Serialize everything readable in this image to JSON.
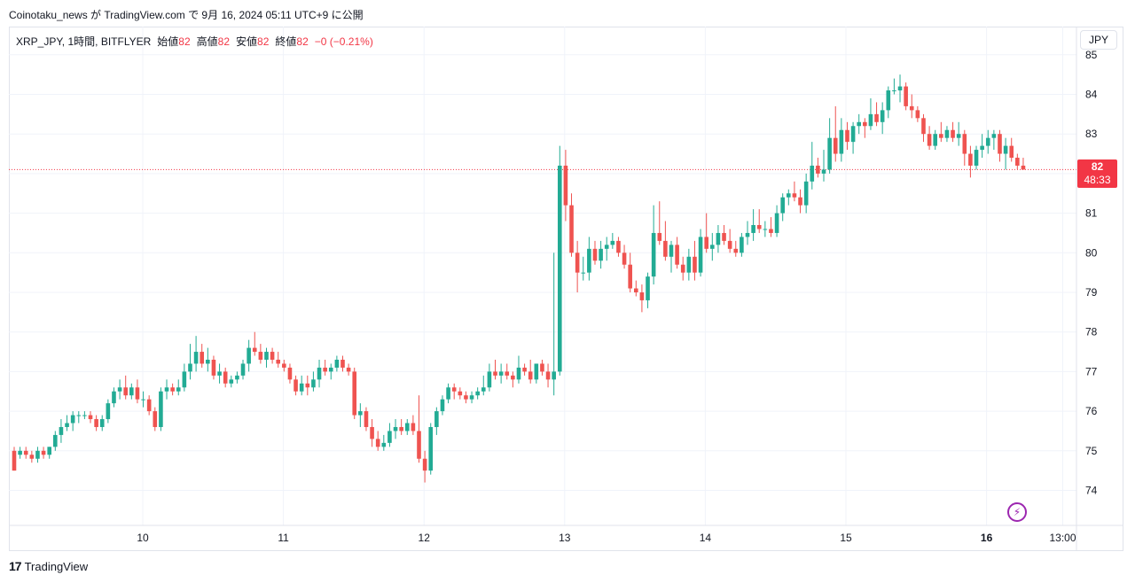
{
  "header": {
    "published_line": "Coinotaku_news が TradingView.com で 9月 16, 2024 05:11 UTC+9 に公開"
  },
  "legend": {
    "symbol": "XRP_JPY, 1時間, BITFLYER",
    "open_label": "始値",
    "open_value": "82",
    "high_label": "高値",
    "high_value": "82",
    "low_label": "安値",
    "low_value": "82",
    "close_label": "終値",
    "close_value": "82",
    "change": "−0 (−0.21%)"
  },
  "currency_button": "JPY",
  "last_price": {
    "price": "82",
    "countdown": "48:33"
  },
  "footer": {
    "logo_mark": "17",
    "logo_text": "TradingView"
  },
  "colors": {
    "up": "#22ab94",
    "down": "#ef5350",
    "grid": "#f0f3fa",
    "price_line": "#f23645",
    "bolt": "#9c27b0"
  },
  "icons": {
    "bolt": "lightning-icon"
  },
  "chart_data": {
    "type": "candlestick",
    "title": "XRP_JPY, 1時間, BITFLYER",
    "y_ticks": [
      "74",
      "75",
      "76",
      "77",
      "78",
      "79",
      "80",
      "81",
      "82",
      "83",
      "84",
      "85"
    ],
    "ylim": [
      73.2,
      85.1
    ],
    "x_ticks": [
      {
        "label": "10",
        "day": 1
      },
      {
        "label": "11",
        "day": 2
      },
      {
        "label": "12",
        "day": 3
      },
      {
        "label": "13",
        "day": 4
      },
      {
        "label": "14",
        "day": 5
      },
      {
        "label": "15",
        "day": 6
      },
      {
        "label": "16",
        "day": 7,
        "bold": true
      },
      {
        "label": "13:00",
        "day": 7.5417
      }
    ],
    "last_price": 82.1,
    "grid": true,
    "candles": [
      [
        75.0,
        75.1,
        74.5,
        74.5
      ],
      [
        74.9,
        75.1,
        74.8,
        75.0
      ],
      [
        75.0,
        75.1,
        74.8,
        74.9
      ],
      [
        74.9,
        75.0,
        74.7,
        74.8
      ],
      [
        74.8,
        75.1,
        74.7,
        75.0
      ],
      [
        75.0,
        75.1,
        74.8,
        74.9
      ],
      [
        74.9,
        75.1,
        74.8,
        75.1
      ],
      [
        75.1,
        75.5,
        75.0,
        75.4
      ],
      [
        75.4,
        75.8,
        75.2,
        75.6
      ],
      [
        75.6,
        75.9,
        75.5,
        75.7
      ],
      [
        75.7,
        76.0,
        75.5,
        75.9
      ],
      [
        75.9,
        76.0,
        75.7,
        75.9
      ],
      [
        75.9,
        76.0,
        75.8,
        75.9
      ],
      [
        75.9,
        76.0,
        75.7,
        75.8
      ],
      [
        75.8,
        75.9,
        75.5,
        75.6
      ],
      [
        75.6,
        75.9,
        75.5,
        75.8
      ],
      [
        75.8,
        76.3,
        75.7,
        76.2
      ],
      [
        76.2,
        76.6,
        76.1,
        76.5
      ],
      [
        76.5,
        76.8,
        76.3,
        76.6
      ],
      [
        76.6,
        76.9,
        76.3,
        76.4
      ],
      [
        76.4,
        76.7,
        76.3,
        76.6
      ],
      [
        76.6,
        76.8,
        76.2,
        76.3
      ],
      [
        76.3,
        76.5,
        76.1,
        76.3
      ],
      [
        76.3,
        76.4,
        75.9,
        76.0
      ],
      [
        76.0,
        76.1,
        75.5,
        75.6
      ],
      [
        75.6,
        76.6,
        75.5,
        76.5
      ],
      [
        76.5,
        76.8,
        76.3,
        76.6
      ],
      [
        76.6,
        76.7,
        76.4,
        76.5
      ],
      [
        76.5,
        76.8,
        76.4,
        76.6
      ],
      [
        76.6,
        77.2,
        76.5,
        77.0
      ],
      [
        77.0,
        77.7,
        76.8,
        77.2
      ],
      [
        77.2,
        77.9,
        77.0,
        77.5
      ],
      [
        77.5,
        77.7,
        77.1,
        77.2
      ],
      [
        77.2,
        77.6,
        77.0,
        77.3
      ],
      [
        77.3,
        77.4,
        76.8,
        76.9
      ],
      [
        76.9,
        77.2,
        76.7,
        77.0
      ],
      [
        77.0,
        77.1,
        76.6,
        76.7
      ],
      [
        76.7,
        76.9,
        76.6,
        76.8
      ],
      [
        76.8,
        77.0,
        76.7,
        76.9
      ],
      [
        76.9,
        77.3,
        76.8,
        77.2
      ],
      [
        77.2,
        77.8,
        77.0,
        77.6
      ],
      [
        77.6,
        78.0,
        77.4,
        77.5
      ],
      [
        77.5,
        77.7,
        77.2,
        77.3
      ],
      [
        77.3,
        77.6,
        77.1,
        77.5
      ],
      [
        77.5,
        77.6,
        77.2,
        77.3
      ],
      [
        77.3,
        77.5,
        77.1,
        77.2
      ],
      [
        77.2,
        77.3,
        77.0,
        77.1
      ],
      [
        77.1,
        77.2,
        76.7,
        76.8
      ],
      [
        76.8,
        76.9,
        76.4,
        76.5
      ],
      [
        76.5,
        76.9,
        76.4,
        76.7
      ],
      [
        76.7,
        76.9,
        76.4,
        76.6
      ],
      [
        76.6,
        77.0,
        76.5,
        76.8
      ],
      [
        76.8,
        77.3,
        76.6,
        77.1
      ],
      [
        77.1,
        77.3,
        76.9,
        77.0
      ],
      [
        77.0,
        77.2,
        76.8,
        77.1
      ],
      [
        77.1,
        77.4,
        77.0,
        77.3
      ],
      [
        77.3,
        77.4,
        77.0,
        77.1
      ],
      [
        77.1,
        77.2,
        76.9,
        77.0
      ],
      [
        77.0,
        77.1,
        75.8,
        75.9
      ],
      [
        75.9,
        76.2,
        75.6,
        76.0
      ],
      [
        76.0,
        76.1,
        75.5,
        75.6
      ],
      [
        75.6,
        75.8,
        75.1,
        75.3
      ],
      [
        75.3,
        75.5,
        75.0,
        75.1
      ],
      [
        75.1,
        75.4,
        75.0,
        75.2
      ],
      [
        75.2,
        75.7,
        75.1,
        75.5
      ],
      [
        75.5,
        75.8,
        75.3,
        75.6
      ],
      [
        75.6,
        75.8,
        75.4,
        75.5
      ],
      [
        75.5,
        75.8,
        75.4,
        75.7
      ],
      [
        75.7,
        75.9,
        75.4,
        75.5
      ],
      [
        75.5,
        76.4,
        74.7,
        74.8
      ],
      [
        74.8,
        75.0,
        74.2,
        74.5
      ],
      [
        74.5,
        75.7,
        74.4,
        75.6
      ],
      [
        75.6,
        76.1,
        75.4,
        76.0
      ],
      [
        76.0,
        76.4,
        75.9,
        76.3
      ],
      [
        76.3,
        76.7,
        76.2,
        76.6
      ],
      [
        76.6,
        76.7,
        76.3,
        76.5
      ],
      [
        76.5,
        76.6,
        76.3,
        76.4
      ],
      [
        76.4,
        76.5,
        76.2,
        76.3
      ],
      [
        76.3,
        76.5,
        76.2,
        76.4
      ],
      [
        76.4,
        76.6,
        76.3,
        76.5
      ],
      [
        76.5,
        76.9,
        76.4,
        76.6
      ],
      [
        76.6,
        77.2,
        76.5,
        77.0
      ],
      [
        77.0,
        77.3,
        76.8,
        76.9
      ],
      [
        76.9,
        77.2,
        76.7,
        77.0
      ],
      [
        77.0,
        77.2,
        76.8,
        76.9
      ],
      [
        76.9,
        77.0,
        76.6,
        76.8
      ],
      [
        76.8,
        77.4,
        76.7,
        77.1
      ],
      [
        77.1,
        77.2,
        76.9,
        77.0
      ],
      [
        77.0,
        77.3,
        76.7,
        76.8
      ],
      [
        76.8,
        77.2,
        76.7,
        77.2
      ],
      [
        77.2,
        77.3,
        76.9,
        77.0
      ],
      [
        77.0,
        77.2,
        76.6,
        76.8
      ],
      [
        76.8,
        80.0,
        76.4,
        77.0
      ],
      [
        77.0,
        82.7,
        76.9,
        82.2
      ],
      [
        82.2,
        82.6,
        80.8,
        81.2
      ],
      [
        81.2,
        81.5,
        79.9,
        80.0
      ],
      [
        80.0,
        80.3,
        79.0,
        79.5
      ],
      [
        79.5,
        79.9,
        79.3,
        79.5
      ],
      [
        79.5,
        80.4,
        79.3,
        80.1
      ],
      [
        80.1,
        80.3,
        79.7,
        79.8
      ],
      [
        79.8,
        80.3,
        79.6,
        80.1
      ],
      [
        80.1,
        80.4,
        79.8,
        80.2
      ],
      [
        80.2,
        80.5,
        80.1,
        80.3
      ],
      [
        80.3,
        80.4,
        79.9,
        80.0
      ],
      [
        80.0,
        80.2,
        79.6,
        79.7
      ],
      [
        79.7,
        80.0,
        79.0,
        79.1
      ],
      [
        79.1,
        79.3,
        78.9,
        79.0
      ],
      [
        79.0,
        79.2,
        78.5,
        78.8
      ],
      [
        78.8,
        79.5,
        78.6,
        79.4
      ],
      [
        79.4,
        81.2,
        79.2,
        80.5
      ],
      [
        80.5,
        81.3,
        80.2,
        80.3
      ],
      [
        80.3,
        80.8,
        79.8,
        79.9
      ],
      [
        79.9,
        80.3,
        79.5,
        80.2
      ],
      [
        80.2,
        80.4,
        79.6,
        79.7
      ],
      [
        79.7,
        79.9,
        79.3,
        79.5
      ],
      [
        79.5,
        80.1,
        79.3,
        79.9
      ],
      [
        79.9,
        80.3,
        79.3,
        79.5
      ],
      [
        79.5,
        80.6,
        79.4,
        80.4
      ],
      [
        80.4,
        81.0,
        80.0,
        80.1
      ],
      [
        80.1,
        80.5,
        79.8,
        80.2
      ],
      [
        80.2,
        80.7,
        80.0,
        80.5
      ],
      [
        80.5,
        80.7,
        80.2,
        80.3
      ],
      [
        80.3,
        80.6,
        80.0,
        80.1
      ],
      [
        80.1,
        80.3,
        79.9,
        80.0
      ],
      [
        80.0,
        80.5,
        79.9,
        80.4
      ],
      [
        80.4,
        80.8,
        80.2,
        80.5
      ],
      [
        80.5,
        81.1,
        80.3,
        80.7
      ],
      [
        80.7,
        81.1,
        80.5,
        80.6
      ],
      [
        80.6,
        80.8,
        80.4,
        80.6
      ],
      [
        80.6,
        80.9,
        80.4,
        80.5
      ],
      [
        80.5,
        81.2,
        80.4,
        81.0
      ],
      [
        81.0,
        81.5,
        80.8,
        81.4
      ],
      [
        81.4,
        81.6,
        81.2,
        81.5
      ],
      [
        81.5,
        81.8,
        81.3,
        81.4
      ],
      [
        81.4,
        81.6,
        81.0,
        81.2
      ],
      [
        81.2,
        82.0,
        81.0,
        81.8
      ],
      [
        81.8,
        82.8,
        81.6,
        82.2
      ],
      [
        82.2,
        82.4,
        81.9,
        82.0
      ],
      [
        82.0,
        82.6,
        81.8,
        82.1
      ],
      [
        82.1,
        83.4,
        82.0,
        82.9
      ],
      [
        82.9,
        83.7,
        82.3,
        82.5
      ],
      [
        82.5,
        83.4,
        82.3,
        83.1
      ],
      [
        83.1,
        83.3,
        82.6,
        82.8
      ],
      [
        82.8,
        83.3,
        82.5,
        83.2
      ],
      [
        83.2,
        83.5,
        83.0,
        83.3
      ],
      [
        83.3,
        83.4,
        82.9,
        83.2
      ],
      [
        83.2,
        83.9,
        83.1,
        83.5
      ],
      [
        83.5,
        83.8,
        83.2,
        83.3
      ],
      [
        83.3,
        83.8,
        83.0,
        83.6
      ],
      [
        83.6,
        84.2,
        83.4,
        84.1
      ],
      [
        84.1,
        84.4,
        84.0,
        84.1
      ],
      [
        84.1,
        84.5,
        83.8,
        84.2
      ],
      [
        84.2,
        84.3,
        83.6,
        83.7
      ],
      [
        83.7,
        84.0,
        83.4,
        83.6
      ],
      [
        83.6,
        83.7,
        83.3,
        83.4
      ],
      [
        83.4,
        83.5,
        82.8,
        83.0
      ],
      [
        83.0,
        83.2,
        82.6,
        82.7
      ],
      [
        82.7,
        83.1,
        82.6,
        83.0
      ],
      [
        83.0,
        83.3,
        82.8,
        82.9
      ],
      [
        82.9,
        83.2,
        82.8,
        83.1
      ],
      [
        83.1,
        83.3,
        82.8,
        82.9
      ],
      [
        82.9,
        83.3,
        82.7,
        83.0
      ],
      [
        83.0,
        83.1,
        82.2,
        82.5
      ],
      [
        82.5,
        82.7,
        81.9,
        82.2
      ],
      [
        82.2,
        82.7,
        82.1,
        82.6
      ],
      [
        82.6,
        83.0,
        82.4,
        82.7
      ],
      [
        82.7,
        83.1,
        82.5,
        82.9
      ],
      [
        82.9,
        83.1,
        82.6,
        83.0
      ],
      [
        83.0,
        83.1,
        82.3,
        82.5
      ],
      [
        82.5,
        82.9,
        82.1,
        82.7
      ],
      [
        82.7,
        82.9,
        82.3,
        82.4
      ],
      [
        82.4,
        82.5,
        82.1,
        82.2
      ],
      [
        82.2,
        82.4,
        82.1,
        82.1
      ]
    ]
  }
}
